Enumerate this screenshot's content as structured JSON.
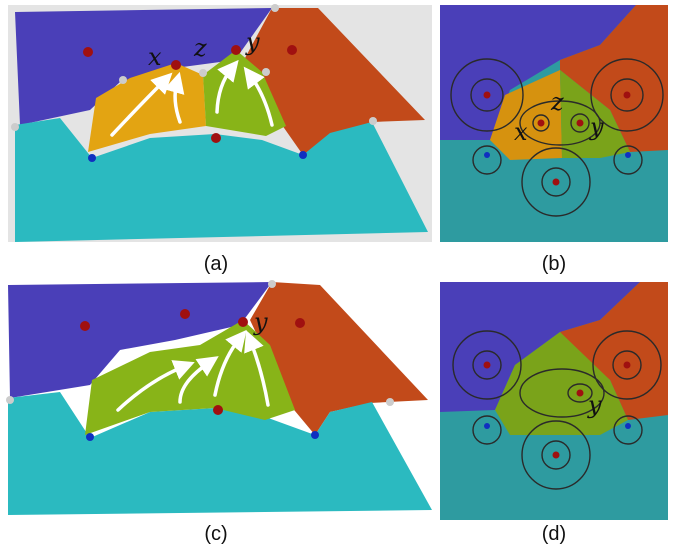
{
  "panels": [
    {
      "caption": "(a)",
      "labels": [
        "x",
        "z",
        "y"
      ]
    },
    {
      "caption": "(b)",
      "labels": [
        "z",
        "x",
        "y"
      ]
    },
    {
      "caption": "(c)",
      "labels": [
        "y"
      ]
    },
    {
      "caption": "(d)",
      "labels": [
        "y"
      ]
    }
  ]
}
